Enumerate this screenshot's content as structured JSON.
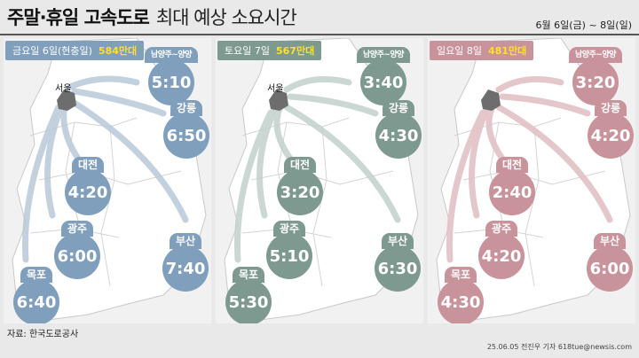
{
  "header": {
    "title_bold": "주말·휴일 고속도로",
    "title_light": "최대 예상 소요시간",
    "date_range": "6월 6일(금) ~ 8일(일)"
  },
  "colors": {
    "friday": "#7f9fbc",
    "saturday": "#7e9990",
    "sunday": "#c9939c",
    "count_highlight": "#ffe02a"
  },
  "panels": [
    {
      "day_label": "금요일 6일(현충일)",
      "count": "584만대",
      "seoul": "서울",
      "routes": {
        "namyangju": {
          "name": "남양주~양양",
          "time": "5:10"
        },
        "gangneung": {
          "name": "강릉",
          "time": "6:50"
        },
        "daejeon": {
          "name": "대전",
          "time": "4:20"
        },
        "gwangju": {
          "name": "광주",
          "time": "6:00"
        },
        "busan": {
          "name": "부산",
          "time": "7:40"
        },
        "mokpo": {
          "name": "목포",
          "time": "6:40"
        }
      }
    },
    {
      "day_label": "토요일 7일",
      "count": "567만대",
      "seoul": "서울",
      "routes": {
        "namyangju": {
          "name": "남양주~양양",
          "time": "3:40"
        },
        "gangneung": {
          "name": "강릉",
          "time": "4:30"
        },
        "daejeon": {
          "name": "대전",
          "time": "3:20"
        },
        "gwangju": {
          "name": "광주",
          "time": "5:10"
        },
        "busan": {
          "name": "부산",
          "time": "6:30"
        },
        "mokpo": {
          "name": "목포",
          "time": "5:30"
        }
      }
    },
    {
      "day_label": "일요일 8일",
      "count": "481만대",
      "seoul": "",
      "routes": {
        "namyangju": {
          "name": "남양주~양양",
          "time": "3:20"
        },
        "gangneung": {
          "name": "강릉",
          "time": "4:20"
        },
        "daejeon": {
          "name": "대전",
          "time": "2:40"
        },
        "gwangju": {
          "name": "광주",
          "time": "4:20"
        },
        "busan": {
          "name": "부산",
          "time": "6:00"
        },
        "mokpo": {
          "name": "목포",
          "time": "4:30"
        }
      }
    }
  ],
  "footer": {
    "source": "자료: 한국도로공사",
    "credit": "25.06.05 전진우 기자 618tue@newsis.com"
  }
}
